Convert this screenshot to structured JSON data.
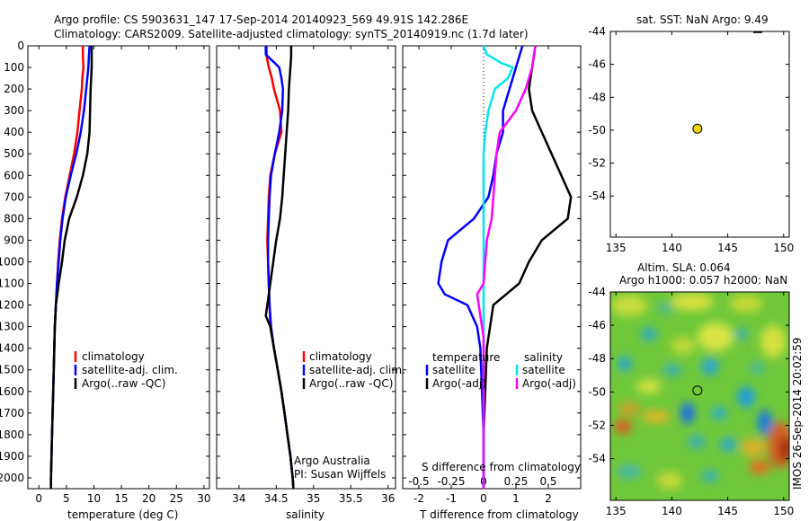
{
  "header": {
    "title_line1": "Argo profile: CS 5903631_147 17-Sep-2014 20140923_569 49.91S 142.286E",
    "title_line2": "Climatology: CARS2009. Satellite-adjusted climatology: synTS_20140919.nc (1.7d later)"
  },
  "credits": {
    "line1": "Argo Australia",
    "line2": "PI: Susan Wijffels"
  },
  "watermark": "IMOS 26-Sep-2014 20:02:59",
  "colors": {
    "climatology": "#ff0000",
    "satellite": "#0000ff",
    "argo": "#000000",
    "satellite_s": "#00e5ee",
    "argo_s": "#ff00ff",
    "marker": "#f0d000"
  },
  "chart_data": [
    {
      "type": "line",
      "xlabel": "temperature (deg C)",
      "ylabel": "",
      "xlim": [
        -2,
        31
      ],
      "ylim": [
        2050,
        0
      ],
      "xticks": [
        0,
        5,
        10,
        15,
        20,
        25,
        30
      ],
      "yticks": [
        0,
        100,
        200,
        300,
        400,
        500,
        600,
        700,
        800,
        900,
        1000,
        1100,
        1200,
        1300,
        1400,
        1500,
        1600,
        1700,
        1800,
        1900,
        2000
      ],
      "legend": [
        "climatology",
        "satellite-adj. clim.",
        "Argo(..raw -QC)"
      ],
      "series": [
        {
          "name": "climatology",
          "color": "#ff0000",
          "points": [
            [
              8.0,
              0
            ],
            [
              8.0,
              50
            ],
            [
              8.1,
              100
            ],
            [
              7.9,
              150
            ],
            [
              7.8,
              200
            ],
            [
              7.4,
              300
            ],
            [
              7.0,
              400
            ],
            [
              6.4,
              500
            ],
            [
              5.6,
              600
            ],
            [
              4.8,
              700
            ],
            [
              4.2,
              800
            ],
            [
              3.8,
              900
            ],
            [
              3.5,
              1000
            ],
            [
              3.3,
              1100
            ],
            [
              3.1,
              1200
            ],
            [
              2.9,
              1300
            ],
            [
              2.8,
              1400
            ],
            [
              2.7,
              1500
            ],
            [
              2.6,
              1600
            ],
            [
              2.5,
              1700
            ],
            [
              2.4,
              1800
            ],
            [
              2.3,
              1900
            ],
            [
              2.2,
              2000
            ],
            [
              2.2,
              2050
            ]
          ]
        },
        {
          "name": "satellite-adj. clim.",
          "color": "#0000ff",
          "points": [
            [
              9.2,
              0
            ],
            [
              9.1,
              50
            ],
            [
              9.0,
              100
            ],
            [
              8.8,
              150
            ],
            [
              8.6,
              200
            ],
            [
              8.2,
              300
            ],
            [
              7.6,
              400
            ],
            [
              6.8,
              500
            ],
            [
              5.8,
              600
            ],
            [
              4.9,
              700
            ],
            [
              4.3,
              800
            ],
            [
              3.9,
              900
            ],
            [
              3.6,
              1000
            ],
            [
              3.3,
              1100
            ],
            [
              3.1,
              1200
            ],
            [
              2.9,
              1300
            ],
            [
              2.8,
              1400
            ],
            [
              2.7,
              1500
            ],
            [
              2.6,
              1600
            ],
            [
              2.5,
              1700
            ],
            [
              2.4,
              1800
            ],
            [
              2.3,
              1900
            ],
            [
              2.2,
              2000
            ],
            [
              2.2,
              2050
            ]
          ]
        },
        {
          "name": "Argo(..raw -QC)",
          "color": "#000000",
          "points": [
            [
              9.6,
              0
            ],
            [
              9.6,
              50
            ],
            [
              9.6,
              100
            ],
            [
              9.5,
              150
            ],
            [
              9.4,
              200
            ],
            [
              9.3,
              300
            ],
            [
              9.2,
              400
            ],
            [
              8.8,
              500
            ],
            [
              8.0,
              600
            ],
            [
              6.9,
              700
            ],
            [
              5.5,
              800
            ],
            [
              4.7,
              900
            ],
            [
              4.2,
              1000
            ],
            [
              3.6,
              1100
            ],
            [
              3.1,
              1200
            ],
            [
              2.9,
              1300
            ],
            [
              2.8,
              1400
            ],
            [
              2.7,
              1500
            ],
            [
              2.6,
              1600
            ],
            [
              2.5,
              1700
            ],
            [
              2.4,
              1800
            ],
            [
              2.3,
              1900
            ],
            [
              2.2,
              2000
            ],
            [
              2.2,
              2050
            ]
          ]
        }
      ]
    },
    {
      "type": "line",
      "xlabel": "salinity",
      "xlim": [
        33.7,
        36.1
      ],
      "ylim": [
        2050,
        0
      ],
      "xticks": [
        34,
        34.5,
        35,
        35.5,
        36
      ],
      "legend": [
        "climatology",
        "satellite-adj. clim.",
        "Argo(..raw -QC)"
      ],
      "series": [
        {
          "name": "climatology",
          "color": "#ff0000",
          "points": [
            [
              34.37,
              0
            ],
            [
              34.37,
              50
            ],
            [
              34.4,
              100
            ],
            [
              34.44,
              150
            ],
            [
              34.47,
              200
            ],
            [
              34.55,
              300
            ],
            [
              34.57,
              400
            ],
            [
              34.48,
              500
            ],
            [
              34.42,
              600
            ],
            [
              34.4,
              700
            ],
            [
              34.39,
              800
            ],
            [
              34.38,
              900
            ],
            [
              34.39,
              1000
            ],
            [
              34.4,
              1100
            ],
            [
              34.41,
              1200
            ],
            [
              34.42,
              1300
            ],
            [
              34.47,
              1400
            ],
            [
              34.52,
              1500
            ],
            [
              34.57,
              1600
            ],
            [
              34.61,
              1700
            ],
            [
              34.65,
              1800
            ],
            [
              34.69,
              1900
            ],
            [
              34.72,
              2000
            ],
            [
              34.73,
              2050
            ]
          ]
        },
        {
          "name": "satellite-adj. clim.",
          "color": "#0000ff",
          "points": [
            [
              34.36,
              0
            ],
            [
              34.36,
              40
            ],
            [
              34.48,
              80
            ],
            [
              34.54,
              100
            ],
            [
              34.57,
              150
            ],
            [
              34.59,
              200
            ],
            [
              34.58,
              300
            ],
            [
              34.54,
              400
            ],
            [
              34.48,
              500
            ],
            [
              34.43,
              600
            ],
            [
              34.41,
              700
            ],
            [
              34.4,
              800
            ],
            [
              34.39,
              900
            ],
            [
              34.39,
              1000
            ],
            [
              34.4,
              1100
            ],
            [
              34.41,
              1200
            ],
            [
              34.43,
              1300
            ],
            [
              34.47,
              1400
            ],
            [
              34.52,
              1500
            ],
            [
              34.57,
              1600
            ],
            [
              34.61,
              1700
            ],
            [
              34.65,
              1800
            ],
            [
              34.69,
              1900
            ],
            [
              34.72,
              2000
            ],
            [
              34.73,
              2050
            ]
          ]
        },
        {
          "name": "Argo(..raw -QC)",
          "color": "#000000",
          "points": [
            [
              34.7,
              0
            ],
            [
              34.7,
              50
            ],
            [
              34.69,
              100
            ],
            [
              34.67,
              200
            ],
            [
              34.66,
              300
            ],
            [
              34.64,
              400
            ],
            [
              34.62,
              500
            ],
            [
              34.6,
              600
            ],
            [
              34.58,
              700
            ],
            [
              34.55,
              800
            ],
            [
              34.5,
              900
            ],
            [
              34.46,
              1000
            ],
            [
              34.42,
              1100
            ],
            [
              34.38,
              1200
            ],
            [
              34.36,
              1250
            ],
            [
              34.42,
              1300
            ],
            [
              34.47,
              1400
            ],
            [
              34.52,
              1500
            ],
            [
              34.57,
              1600
            ],
            [
              34.61,
              1700
            ],
            [
              34.65,
              1800
            ],
            [
              34.69,
              1900
            ],
            [
              34.72,
              2000
            ],
            [
              34.73,
              2050
            ]
          ]
        }
      ]
    },
    {
      "type": "line",
      "xlabel": "T difference from climatology",
      "xlabel_top": "S difference from climatology",
      "xlim": [
        -2.5,
        3.0
      ],
      "ylim": [
        2050,
        0
      ],
      "xticks": [
        -2,
        -1,
        0,
        1,
        2
      ],
      "xticklabels": [
        "-2",
        "-1",
        "0",
        "1",
        "2"
      ],
      "sticks": [
        -0.5,
        -0.25,
        0,
        0.25,
        0.5
      ],
      "legend_titles": [
        "temperature",
        "salinity"
      ],
      "legend": [
        "satellite",
        "Argo(-adj)",
        "satellite",
        "Argo(-adj)"
      ],
      "series": [
        {
          "name": "temperature satellite",
          "color": "#0000ff",
          "points": [
            [
              1.2,
              0
            ],
            [
              1.0,
              100
            ],
            [
              0.8,
              200
            ],
            [
              0.6,
              300
            ],
            [
              0.6,
              400
            ],
            [
              0.4,
              500
            ],
            [
              0.3,
              600
            ],
            [
              0.15,
              700
            ],
            [
              -0.3,
              800
            ],
            [
              -1.1,
              900
            ],
            [
              -1.3,
              1000
            ],
            [
              -1.4,
              1100
            ],
            [
              -1.2,
              1150
            ],
            [
              -0.5,
              1200
            ],
            [
              -0.2,
              1300
            ],
            [
              -0.1,
              1400
            ],
            [
              -0.05,
              1600
            ],
            [
              0,
              1800
            ],
            [
              0,
              2050
            ]
          ]
        },
        {
          "name": "temperature Argo(-adj)",
          "color": "#000000",
          "points": [
            [
              1.6,
              0
            ],
            [
              1.5,
              100
            ],
            [
              1.4,
              200
            ],
            [
              1.5,
              300
            ],
            [
              1.8,
              400
            ],
            [
              2.1,
              500
            ],
            [
              2.4,
              600
            ],
            [
              2.7,
              700
            ],
            [
              2.6,
              800
            ],
            [
              1.8,
              900
            ],
            [
              1.4,
              1000
            ],
            [
              1.1,
              1100
            ],
            [
              0.7,
              1150
            ],
            [
              0.3,
              1200
            ],
            [
              0.2,
              1300
            ],
            [
              0.1,
              1400
            ],
            [
              0.05,
              1600
            ],
            [
              0,
              1800
            ],
            [
              0,
              2050
            ]
          ]
        },
        {
          "name": "salinity satellite",
          "color": "#00e5ee",
          "points": [
            [
              0,
              0
            ],
            [
              0.1,
              40
            ],
            [
              0.55,
              80
            ],
            [
              0.9,
              100
            ],
            [
              0.75,
              150
            ],
            [
              0.35,
              200
            ],
            [
              0.15,
              300
            ],
            [
              0.05,
              400
            ],
            [
              0,
              500
            ],
            [
              0,
              700
            ],
            [
              0,
              900
            ],
            [
              0,
              1200
            ],
            [
              0,
              1500
            ],
            [
              0,
              2050
            ]
          ]
        },
        {
          "name": "salinity Argo(-adj)",
          "color": "#ff00ff",
          "points": [
            [
              1.6,
              0
            ],
            [
              1.5,
              100
            ],
            [
              1.3,
              200
            ],
            [
              1.0,
              300
            ],
            [
              0.5,
              400
            ],
            [
              0.4,
              500
            ],
            [
              0.35,
              600
            ],
            [
              0.3,
              700
            ],
            [
              0.25,
              800
            ],
            [
              0.1,
              900
            ],
            [
              0.05,
              1000
            ],
            [
              0,
              1100
            ],
            [
              -0.2,
              1150
            ],
            [
              -0.1,
              1250
            ],
            [
              0,
              1350
            ],
            [
              0,
              1500
            ],
            [
              0,
              2050
            ]
          ]
        }
      ]
    },
    {
      "type": "scatter",
      "title": "sat. SST: NaN Argo: 9.49",
      "xlim": [
        134.5,
        150.5
      ],
      "ylim": [
        -56.5,
        -44
      ],
      "xticks": [
        135,
        140,
        145,
        150
      ],
      "yticks": [
        -44,
        -46,
        -48,
        -50,
        -52,
        -54
      ],
      "points": [
        [
          142.286,
          -49.91
        ]
      ]
    },
    {
      "type": "heatmap",
      "title_line1": "Altim. SLA: 0.064",
      "title_line2": "Argo h1000: 0.057 h2000: NaN",
      "xlim": [
        134.5,
        150.5
      ],
      "ylim": [
        -56.5,
        -44
      ],
      "xticks": [
        135,
        140,
        145,
        150
      ],
      "yticks": [
        -44,
        -46,
        -48,
        -50,
        -52,
        -54
      ],
      "points": [
        [
          142.286,
          -49.91
        ]
      ]
    }
  ]
}
